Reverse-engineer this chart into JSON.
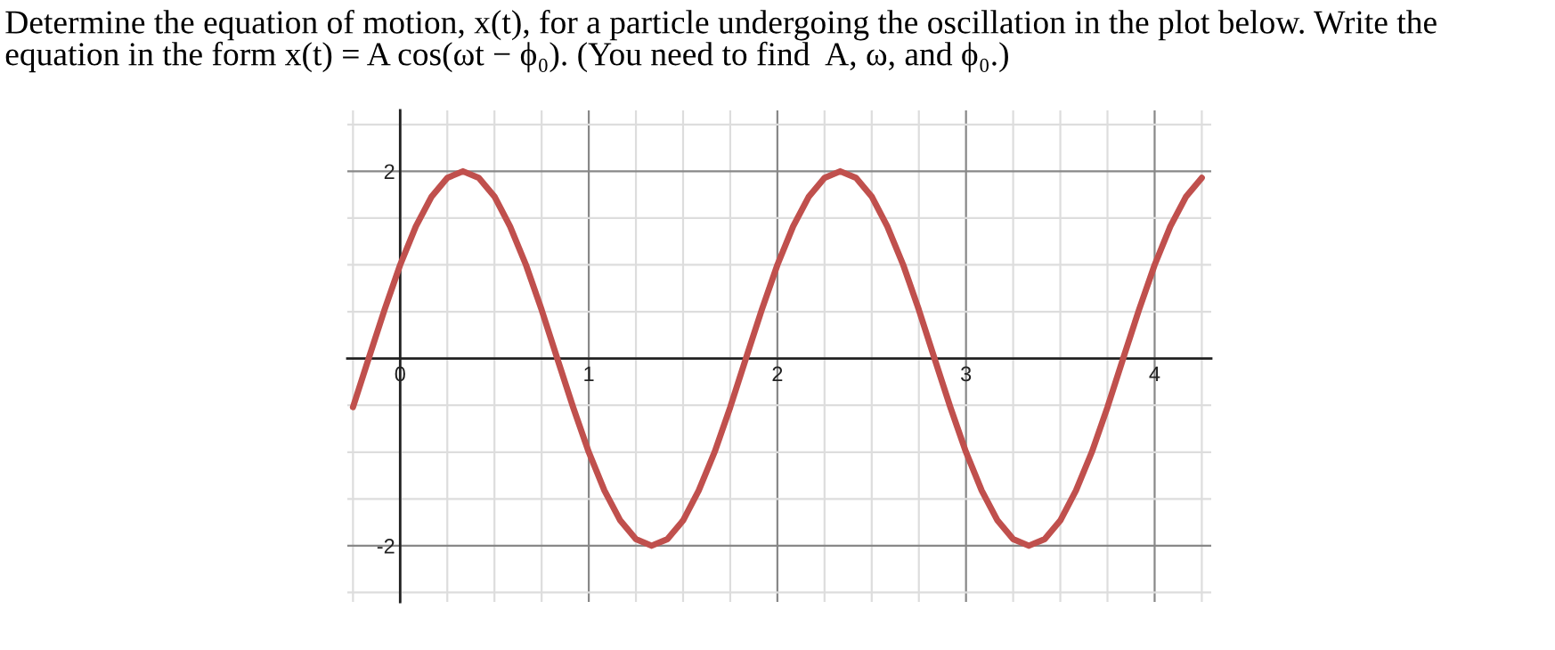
{
  "chart_data": {
    "type": "line",
    "title": "Determine the equation of motion, x(t), for a particle undergoing the oscillation in the plot below. Write the equation in the form x(t) = A cos(ωt − ϕ₀). (You need to find  A, ω, and ϕ₀.)",
    "x": [
      -0.25,
      -0.167,
      -0.083,
      0,
      0.083,
      0.167,
      0.25,
      0.333,
      0.417,
      0.5,
      0.583,
      0.667,
      0.75,
      0.833,
      0.917,
      1,
      1.083,
      1.167,
      1.25,
      1.333,
      1.417,
      1.5,
      1.583,
      1.667,
      1.75,
      1.833,
      1.917,
      2,
      2.083,
      2.167,
      2.25,
      2.333,
      2.417,
      2.5,
      2.583,
      2.667,
      2.75,
      2.833,
      2.917,
      3,
      3.083,
      3.167,
      3.25,
      3.333,
      3.417,
      3.5,
      3.583,
      3.667,
      3.75,
      3.833,
      3.917,
      4,
      4.083,
      4.167,
      4.25
    ],
    "series": [
      {
        "color": "#c0504d",
        "values": [
          -0.52,
          0,
          0.52,
          1,
          1.41,
          1.73,
          1.93,
          2,
          1.93,
          1.73,
          1.41,
          1,
          0.52,
          0,
          -0.52,
          -1,
          -1.41,
          -1.73,
          -1.93,
          -2,
          -1.93,
          -1.73,
          -1.41,
          -1,
          -0.52,
          0,
          0.52,
          1,
          1.41,
          1.73,
          1.93,
          2,
          1.93,
          1.73,
          1.41,
          1,
          0.52,
          0,
          -0.52,
          -1,
          -1.41,
          -1.73,
          -1.93,
          -2,
          -1.93,
          -1.73,
          -1.41,
          -1,
          -0.52,
          0,
          0.52,
          1,
          1.41,
          1.73,
          1.93
        ]
      }
    ],
    "xlim": [
      -0.28,
      4.3
    ],
    "ylim": [
      -2.6,
      2.65
    ],
    "xticks": [
      {
        "value": -0.25,
        "label": null
      },
      0,
      {
        "value": 0.25,
        "label": null
      },
      {
        "value": 0.5,
        "label": null
      },
      {
        "value": 0.75,
        "label": null
      },
      1,
      {
        "value": 1.25,
        "label": null
      },
      {
        "value": 1.5,
        "label": null
      },
      {
        "value": 1.75,
        "label": null
      },
      2,
      {
        "value": 2.25,
        "label": null
      },
      {
        "value": 2.5,
        "label": null
      },
      {
        "value": 2.75,
        "label": null
      },
      3,
      {
        "value": 3.25,
        "label": null
      },
      {
        "value": 3.5,
        "label": null
      },
      {
        "value": 3.75,
        "label": null
      },
      4,
      {
        "value": 4.25,
        "label": null
      }
    ],
    "yticks": [
      {
        "value": -2.5,
        "label": null
      },
      -2,
      {
        "value": -1.5,
        "label": null
      },
      {
        "value": -1,
        "label": null
      },
      {
        "value": -0.5,
        "label": null
      },
      {
        "value": 0,
        "label": null
      },
      {
        "value": 0.5,
        "label": null
      },
      {
        "value": 1,
        "label": null
      },
      {
        "value": 1.5,
        "label": null
      },
      2,
      {
        "value": 2.5,
        "label": null
      }
    ],
    "grid": true,
    "marker": "none",
    "line_style": "solid"
  }
}
